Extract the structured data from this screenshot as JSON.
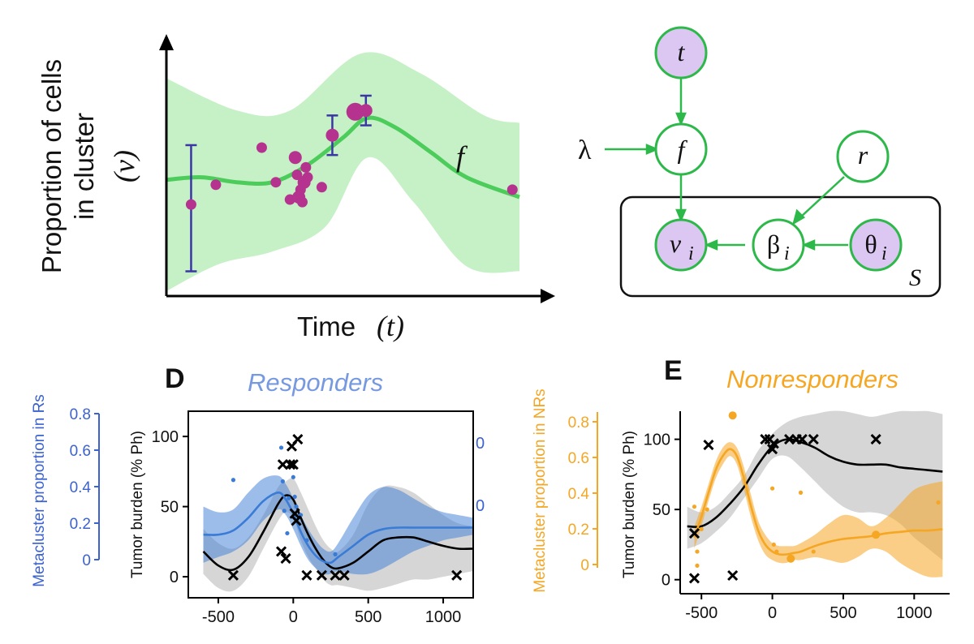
{
  "chart_data": [
    {
      "type": "scatter",
      "panel": "schematic",
      "title": "",
      "xlabel": "Time",
      "xlabel_symbol": "(t)",
      "ylabel_lines": [
        "Proportion of cells",
        "in cluster"
      ],
      "ylabel_symbol": "(v)",
      "curve_label": "f",
      "mean_curve": [
        {
          "t": 0.0,
          "v": 0.47
        },
        {
          "t": 0.1,
          "v": 0.48
        },
        {
          "t": 0.2,
          "v": 0.46
        },
        {
          "t": 0.3,
          "v": 0.46
        },
        {
          "t": 0.4,
          "v": 0.53
        },
        {
          "t": 0.5,
          "v": 0.64
        },
        {
          "t": 0.57,
          "v": 0.72
        },
        {
          "t": 0.65,
          "v": 0.68
        },
        {
          "t": 0.75,
          "v": 0.58
        },
        {
          "t": 0.85,
          "v": 0.48
        },
        {
          "t": 1.0,
          "v": 0.4
        }
      ],
      "band_upper": [
        {
          "t": 0.0,
          "v": 0.88
        },
        {
          "t": 0.2,
          "v": 0.75
        },
        {
          "t": 0.35,
          "v": 0.75
        },
        {
          "t": 0.55,
          "v": 0.98
        },
        {
          "t": 0.72,
          "v": 0.9
        },
        {
          "t": 0.9,
          "v": 0.73
        },
        {
          "t": 1.0,
          "v": 0.7
        }
      ],
      "band_lower": [
        {
          "t": 0.0,
          "v": 0.02
        },
        {
          "t": 0.15,
          "v": 0.13
        },
        {
          "t": 0.3,
          "v": 0.18
        },
        {
          "t": 0.45,
          "v": 0.28
        },
        {
          "t": 0.57,
          "v": 0.56
        },
        {
          "t": 0.7,
          "v": 0.38
        },
        {
          "t": 0.85,
          "v": 0.12
        },
        {
          "t": 1.0,
          "v": 0.1
        }
      ],
      "points": [
        {
          "t": 0.07,
          "v": 0.37,
          "size": 1
        },
        {
          "t": 0.14,
          "v": 0.45,
          "size": 1
        },
        {
          "t": 0.27,
          "v": 0.6,
          "size": 1
        },
        {
          "t": 0.31,
          "v": 0.46,
          "size": 1
        },
        {
          "t": 0.35,
          "v": 0.39,
          "size": 1
        },
        {
          "t": 0.365,
          "v": 0.56,
          "size": 2
        },
        {
          "t": 0.37,
          "v": 0.49,
          "size": 1
        },
        {
          "t": 0.375,
          "v": 0.4,
          "size": 2
        },
        {
          "t": 0.38,
          "v": 0.43,
          "size": 1
        },
        {
          "t": 0.385,
          "v": 0.38,
          "size": 1
        },
        {
          "t": 0.39,
          "v": 0.46,
          "size": 2
        },
        {
          "t": 0.395,
          "v": 0.52,
          "size": 1
        },
        {
          "t": 0.4,
          "v": 0.48,
          "size": 1
        },
        {
          "t": 0.44,
          "v": 0.44,
          "size": 1
        },
        {
          "t": 0.47,
          "v": 0.65,
          "size": 2
        },
        {
          "t": 0.535,
          "v": 0.745,
          "size": 3
        },
        {
          "t": 0.565,
          "v": 0.75,
          "size": 2
        },
        {
          "t": 0.98,
          "v": 0.43,
          "size": 1
        }
      ],
      "error_bars": [
        {
          "t": 0.07,
          "lo": 0.1,
          "hi": 0.61
        },
        {
          "t": 0.47,
          "lo": 0.57,
          "hi": 0.73
        },
        {
          "t": 0.565,
          "lo": 0.69,
          "hi": 0.81
        }
      ],
      "colors": {
        "band": "#c6f0c6",
        "mean": "#4ccc5a",
        "points": "#b5328f",
        "error_bars": "#3a36a3"
      }
    },
    {
      "type": "line",
      "panel": "D",
      "title": "Responders",
      "panel_letter": "D",
      "xlabel": "",
      "ylabel": "Tumor burden (% Ph)",
      "ylabel_right": "Metacluster proportion in Rs",
      "right_axis_ticks": [
        "0.8",
        "0.6",
        "0.4",
        "0.2",
        "0"
      ],
      "right_extra_labels": [
        "0",
        "0"
      ],
      "xlim": [
        -700,
        1200
      ],
      "ylim": [
        -15,
        118
      ],
      "x_ticks": [
        -500,
        0,
        500,
        1000
      ],
      "y_ticks": [
        0,
        50,
        100
      ],
      "series": [
        {
          "name": "",
          "role": "tumor burden",
          "color": "#000000",
          "x": [
            -600,
            -500,
            -400,
            -300,
            -200,
            -100,
            -50,
            0,
            50,
            100,
            150,
            200,
            250,
            300,
            400,
            500,
            600,
            700,
            800,
            900,
            1000,
            1100,
            1200
          ],
          "y": [
            18,
            8,
            5,
            14,
            32,
            52,
            58,
            55,
            42,
            30,
            20,
            12,
            7,
            6,
            10,
            18,
            26,
            28,
            28,
            25,
            22,
            20,
            20
          ],
          "band_upper": [
            34,
            24,
            20,
            28,
            44,
            64,
            68,
            70,
            60,
            48,
            36,
            26,
            20,
            18,
            30,
            52,
            64,
            64,
            60,
            52,
            44,
            38,
            36
          ],
          "band_lower": [
            2,
            -8,
            -10,
            0,
            20,
            40,
            46,
            42,
            26,
            14,
            6,
            -2,
            -6,
            -6,
            -8,
            -10,
            -8,
            -5,
            -2,
            -2,
            0,
            2,
            4
          ]
        },
        {
          "name": "",
          "role": "metacluster proportion",
          "color": "#3a7bd5",
          "x": [
            -600,
            -500,
            -400,
            -300,
            -200,
            -100,
            -50,
            0,
            50,
            100,
            150,
            200,
            250,
            300,
            400,
            500,
            600,
            700,
            800,
            900,
            1000,
            1100,
            1200
          ],
          "y": [
            30,
            30,
            33,
            42,
            54,
            60,
            55,
            45,
            32,
            22,
            15,
            11,
            10,
            14,
            22,
            30,
            34,
            35,
            35,
            35,
            35,
            35,
            35
          ],
          "band_upper": [
            50,
            46,
            48,
            60,
            70,
            72,
            66,
            56,
            44,
            34,
            26,
            20,
            18,
            24,
            42,
            58,
            64,
            62,
            56,
            50,
            46,
            44,
            42
          ],
          "band_lower": [
            10,
            14,
            18,
            26,
            40,
            48,
            44,
            34,
            22,
            12,
            6,
            2,
            2,
            4,
            2,
            2,
            6,
            12,
            18,
            22,
            26,
            28,
            30
          ]
        }
      ],
      "markers_x": [
        {
          "x": -400,
          "y": 1
        },
        {
          "x": -80,
          "y": 18
        },
        {
          "x": -50,
          "y": 13
        },
        {
          "x": -70,
          "y": 80
        },
        {
          "x": -20,
          "y": 80
        },
        {
          "x": 0,
          "y": 80
        },
        {
          "x": -10,
          "y": 93
        },
        {
          "x": 30,
          "y": 98
        },
        {
          "x": 10,
          "y": 45
        },
        {
          "x": 20,
          "y": 40
        },
        {
          "x": 90,
          "y": 1
        },
        {
          "x": 190,
          "y": 1
        },
        {
          "x": 280,
          "y": 1
        },
        {
          "x": 340,
          "y": 1
        },
        {
          "x": 1090,
          "y": 1
        }
      ],
      "blue_dots": [
        {
          "x": -400,
          "y": 69
        },
        {
          "x": -80,
          "y": 92
        },
        {
          "x": -70,
          "y": 68
        },
        {
          "x": -60,
          "y": 47
        },
        {
          "x": -40,
          "y": 31
        },
        {
          "x": -30,
          "y": 56
        },
        {
          "x": 0,
          "y": 71
        },
        {
          "x": 10,
          "y": 57
        },
        {
          "x": 20,
          "y": 50
        },
        {
          "x": 50,
          "y": 44
        },
        {
          "x": 90,
          "y": 26
        },
        {
          "x": 280,
          "y": 16
        }
      ]
    },
    {
      "type": "line",
      "panel": "E",
      "title": "Nonresponders",
      "panel_letter": "E",
      "xlabel": "",
      "ylabel": "Tumor burden (% Ph)",
      "ylabel_left": "Metacluster proportion in NRs",
      "left_axis_ticks": [
        "0.8",
        "0.6",
        "0.4",
        "0.2",
        "0"
      ],
      "xlim": [
        -650,
        1250
      ],
      "ylim": [
        -10,
        120
      ],
      "x_ticks": [
        -500,
        0,
        500,
        1000
      ],
      "y_ticks": [
        0,
        50,
        100
      ],
      "series": [
        {
          "name": "",
          "role": "tumor burden",
          "color": "#000000",
          "x": [
            -600,
            -500,
            -400,
            -300,
            -200,
            -100,
            0,
            100,
            200,
            300,
            400,
            500,
            600,
            700,
            800,
            900,
            1000,
            1100,
            1200
          ],
          "y": [
            38,
            38,
            44,
            54,
            66,
            82,
            95,
            100,
            98,
            94,
            88,
            84,
            82,
            82,
            82,
            80,
            79,
            78,
            77
          ],
          "band_upper": [
            52,
            48,
            52,
            62,
            74,
            92,
            104,
            112,
            116,
            118,
            120,
            120,
            118,
            116,
            118,
            120,
            120,
            120,
            118
          ],
          "band_lower": [
            22,
            26,
            34,
            44,
            58,
            72,
            86,
            88,
            80,
            70,
            60,
            52,
            48,
            48,
            46,
            40,
            30,
            22,
            14
          ]
        },
        {
          "name": "",
          "role": "metacluster proportion",
          "color": "#f5a623",
          "x": [
            -550,
            -500,
            -450,
            -400,
            -350,
            -300,
            -250,
            -200,
            -150,
            -100,
            -50,
            0,
            50,
            100,
            150,
            200,
            300,
            400,
            500,
            600,
            700,
            800,
            900,
            1000,
            1100,
            1200
          ],
          "y": [
            30,
            45,
            62,
            78,
            88,
            93,
            88,
            72,
            52,
            35,
            25,
            20,
            18,
            18,
            19,
            20,
            24,
            27,
            29,
            30,
            31,
            33,
            34,
            35,
            35,
            36
          ],
          "band_upper": [
            38,
            52,
            68,
            84,
            94,
            98,
            94,
            80,
            60,
            42,
            32,
            26,
            24,
            24,
            24,
            26,
            32,
            40,
            46,
            44,
            38,
            44,
            54,
            64,
            68,
            70
          ],
          "band_lower": [
            22,
            38,
            56,
            72,
            82,
            88,
            82,
            64,
            44,
            28,
            18,
            14,
            12,
            12,
            14,
            14,
            16,
            14,
            12,
            16,
            22,
            20,
            12,
            6,
            2,
            2
          ]
        }
      ],
      "markers_x": [
        {
          "x": -550,
          "y": 1
        },
        {
          "x": -550,
          "y": 33
        },
        {
          "x": -450,
          "y": 96
        },
        {
          "x": -280,
          "y": 3
        },
        {
          "x": -50,
          "y": 100
        },
        {
          "x": -20,
          "y": 100
        },
        {
          "x": 0,
          "y": 93
        },
        {
          "x": 10,
          "y": 97
        },
        {
          "x": 120,
          "y": 100
        },
        {
          "x": 170,
          "y": 100
        },
        {
          "x": 210,
          "y": 100
        },
        {
          "x": 290,
          "y": 100
        },
        {
          "x": 730,
          "y": 100
        }
      ],
      "orange_dots": [
        {
          "x": -280,
          "y": 117
        },
        {
          "x": -550,
          "y": 52
        },
        {
          "x": -530,
          "y": 20
        },
        {
          "x": -530,
          "y": 10
        },
        {
          "x": -500,
          "y": 36
        },
        {
          "x": -460,
          "y": 50
        },
        {
          "x": 0,
          "y": 65
        },
        {
          "x": 10,
          "y": 25
        },
        {
          "x": 30,
          "y": 20
        },
        {
          "x": 130,
          "y": 15
        },
        {
          "x": 200,
          "y": 62
        },
        {
          "x": 290,
          "y": 20
        },
        {
          "x": 730,
          "y": 32
        },
        {
          "x": 1170,
          "y": 55
        }
      ]
    }
  ],
  "diagram": {
    "nodes": {
      "t": "t",
      "f": "f",
      "r": "r",
      "v": "v",
      "v_sub": "i",
      "beta": "β",
      "beta_sub": "i",
      "theta": "θ",
      "theta_sub": "i"
    },
    "lambda": "λ",
    "plate_label": "S",
    "colors": {
      "node_stroke": "#2db84a",
      "observed_fill": "#dcc7f2"
    }
  }
}
